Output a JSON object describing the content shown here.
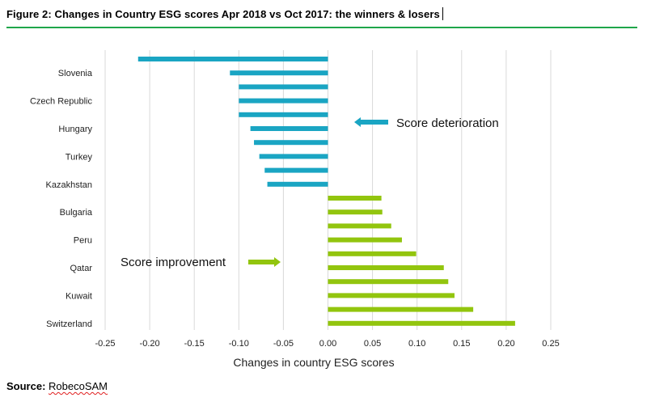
{
  "figure": {
    "title": "Figure 2: Changes in Country ESG scores Apr 2018 vs Oct 2017: the winners & losers"
  },
  "source": {
    "label": "Source:",
    "name": "RobecoSAM"
  },
  "colors": {
    "deterioration": "#1aa5c3",
    "improvement": "#92c50e",
    "title_rule": "#1fa64a",
    "gridline": "#d9d9d9"
  },
  "chart_data": {
    "type": "bar",
    "orientation": "horizontal",
    "xlabel": "Changes in country ESG scores",
    "xlim": [
      -0.25,
      0.25
    ],
    "xticks": [
      -0.25,
      -0.2,
      -0.15,
      -0.1,
      -0.05,
      0.0,
      0.05,
      0.1,
      0.15,
      0.2,
      0.25
    ],
    "xtick_labels": [
      "-0.25",
      "-0.20",
      "-0.15",
      "-0.10",
      "-0.05",
      "0.00",
      "0.05",
      "0.10",
      "0.15",
      "0.20",
      "0.25"
    ],
    "grid": "vertical",
    "bar_count": 20,
    "labels_every_other_bar": [
      "Slovenia",
      "Czech Republic",
      "Hungary",
      "Turkey",
      "Kazakhstan",
      "Bulgaria",
      "Peru",
      "Qatar",
      "Kuwait",
      "Switzerland"
    ],
    "values_top_to_bottom": [
      -0.213,
      -0.11,
      -0.1,
      -0.1,
      -0.1,
      -0.087,
      -0.083,
      -0.077,
      -0.071,
      -0.068,
      0.06,
      0.061,
      0.071,
      0.083,
      0.099,
      0.13,
      0.135,
      0.142,
      0.163,
      0.21
    ],
    "annotations": [
      {
        "text": "Score deterioration",
        "arrow": "left"
      },
      {
        "text": "Score improvement",
        "arrow": "right"
      }
    ]
  }
}
